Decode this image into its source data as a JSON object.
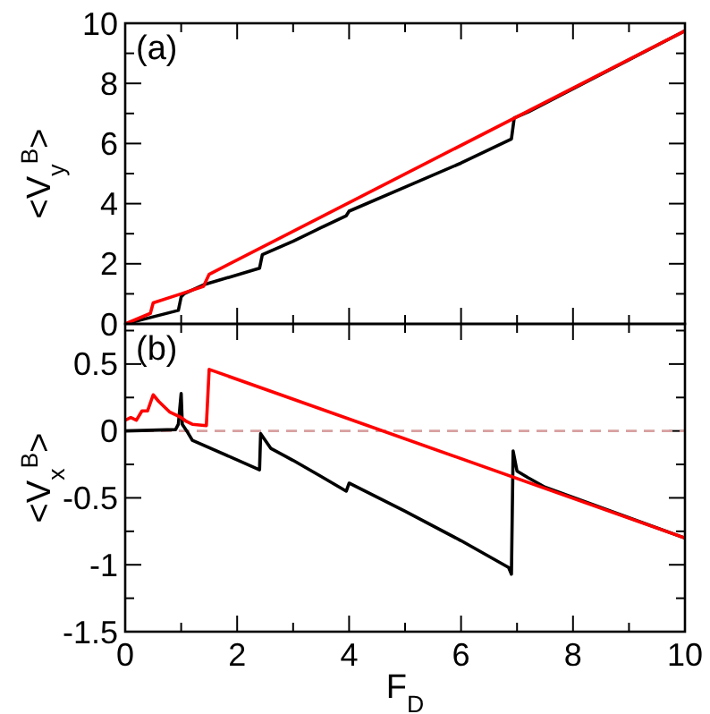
{
  "chart_data": [
    {
      "type": "line",
      "ylabel": "<V$_{y}$$^{B}$>",
      "annotations": [
        "(a)"
      ],
      "xlim": [
        0,
        10
      ],
      "ylim": [
        0,
        10
      ],
      "xticks": [
        0,
        {
          "value": 1,
          "label": null
        },
        2,
        {
          "value": 3,
          "label": null
        },
        4,
        {
          "value": 5,
          "label": null
        },
        6,
        {
          "value": 7,
          "label": null
        },
        8,
        {
          "value": 9,
          "label": null
        },
        10
      ],
      "yticks": [
        0,
        {
          "value": 1,
          "label": null
        },
        2,
        {
          "value": 3,
          "label": null
        },
        4,
        {
          "value": 5,
          "label": null
        },
        6,
        {
          "value": 7,
          "label": null
        },
        8,
        {
          "value": 9,
          "label": null
        },
        10
      ],
      "tick_labels": "y",
      "grid": false,
      "series": [
        {
          "color": "#000000",
          "x": [
            0,
            0.95,
            1.0,
            1.05,
            1.4,
            2.4,
            2.45,
            3,
            3.5,
            3.95,
            4.0,
            5,
            6,
            6.9,
            6.95,
            7.2,
            10
          ],
          "values": [
            0,
            0.45,
            0.9,
            1.0,
            1.3,
            1.85,
            2.3,
            2.75,
            3.2,
            3.6,
            3.75,
            4.55,
            5.35,
            6.15,
            6.85,
            7.05,
            9.75
          ]
        },
        {
          "color": "#ff0000",
          "x": [
            0,
            0.45,
            0.5,
            1.0,
            1.4,
            1.5,
            10
          ],
          "values": [
            0,
            0.35,
            0.7,
            1.0,
            1.25,
            1.65,
            9.75
          ]
        }
      ]
    },
    {
      "type": "line",
      "ylabel": "<V$_{x}$$^{B}$>",
      "xlabel": "F$_{D}$",
      "annotations": [
        "(b)"
      ],
      "xlim": [
        0,
        10
      ],
      "ylim": [
        -1.5,
        0.8
      ],
      "xticks": [
        0,
        {
          "value": 1,
          "label": null
        },
        2,
        {
          "value": 3,
          "label": null
        },
        4,
        {
          "value": 5,
          "label": null
        },
        6,
        {
          "value": 7,
          "label": null
        },
        8,
        {
          "value": 9,
          "label": null
        },
        10
      ],
      "yticks": [
        -1.5,
        {
          "value": -1.25,
          "label": null
        },
        -1,
        {
          "value": -0.75,
          "label": null
        },
        -0.5,
        {
          "value": -0.25,
          "label": null
        },
        0,
        {
          "value": 0.25,
          "label": null
        },
        0.5,
        {
          "value": 0.75,
          "label": null
        }
      ],
      "grid": false,
      "ref_lines": [
        {
          "axis": "y",
          "value": 0,
          "color": "#d8a0a0",
          "line_style": "dashed"
        }
      ],
      "series": [
        {
          "color": "#000000",
          "x": [
            0,
            0.9,
            0.95,
            1.0,
            1.02,
            1.1,
            1.2,
            2.4,
            2.42,
            2.6,
            3,
            3.5,
            3.95,
            4.0,
            5,
            6,
            6.85,
            6.9,
            6.93,
            7.0,
            7.2,
            7.5,
            10
          ],
          "values": [
            0,
            0.01,
            0.05,
            0.28,
            0.05,
            0.0,
            -0.07,
            -0.29,
            -0.02,
            -0.13,
            -0.22,
            -0.34,
            -0.45,
            -0.39,
            -0.6,
            -0.82,
            -1.02,
            -1.07,
            -0.15,
            -0.3,
            -0.35,
            -0.42,
            -0.8
          ]
        },
        {
          "color": "#ff0000",
          "x": [
            0,
            0.1,
            0.2,
            0.3,
            0.4,
            0.5,
            0.6,
            0.8,
            1.0,
            1.1,
            1.2,
            1.45,
            1.5,
            10
          ],
          "values": [
            0.08,
            0.1,
            0.08,
            0.15,
            0.15,
            0.27,
            0.22,
            0.14,
            0.1,
            0.07,
            0.05,
            0.04,
            0.46,
            -0.8
          ]
        }
      ]
    }
  ]
}
